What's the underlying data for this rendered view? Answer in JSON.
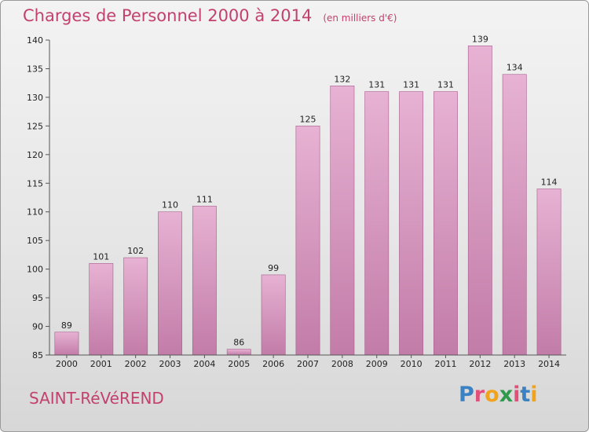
{
  "header": {
    "title": "Charges de Personnel 2000 à 2014",
    "subtitle": "(en milliers d'€)"
  },
  "footer": {
    "commune": "SAINT-RéVéREND",
    "logo_letters": [
      "P",
      "r",
      "o",
      "x",
      "i",
      "t",
      "i"
    ],
    "logo_colors": [
      "#3a82c4",
      "#e2507a",
      "#f2a31c",
      "#2f9a4b",
      "#e2507a",
      "#3a82c4",
      "#f2a31c"
    ]
  },
  "colors": {
    "bar_light": "#e7b2d3",
    "bar_dark": "#c27ca8",
    "bar_edge": "#a65d8c",
    "axis": "#555555",
    "accent": "#c2416e"
  },
  "chart_data": {
    "type": "bar",
    "title": "Charges de Personnel 2000 à 2014",
    "subtitle": "(en milliers d'€)",
    "categories": [
      "2000",
      "2001",
      "2002",
      "2003",
      "2004",
      "2005",
      "2006",
      "2007",
      "2008",
      "2009",
      "2010",
      "2011",
      "2012",
      "2013",
      "2014"
    ],
    "values": [
      89,
      101,
      102,
      110,
      111,
      86,
      99,
      125,
      132,
      131,
      131,
      131,
      139,
      134,
      114
    ],
    "ylim": [
      85,
      140
    ],
    "yticks": [
      85,
      90,
      95,
      100,
      105,
      110,
      115,
      120,
      125,
      130,
      135,
      140
    ],
    "grid": false,
    "legend": "none"
  }
}
